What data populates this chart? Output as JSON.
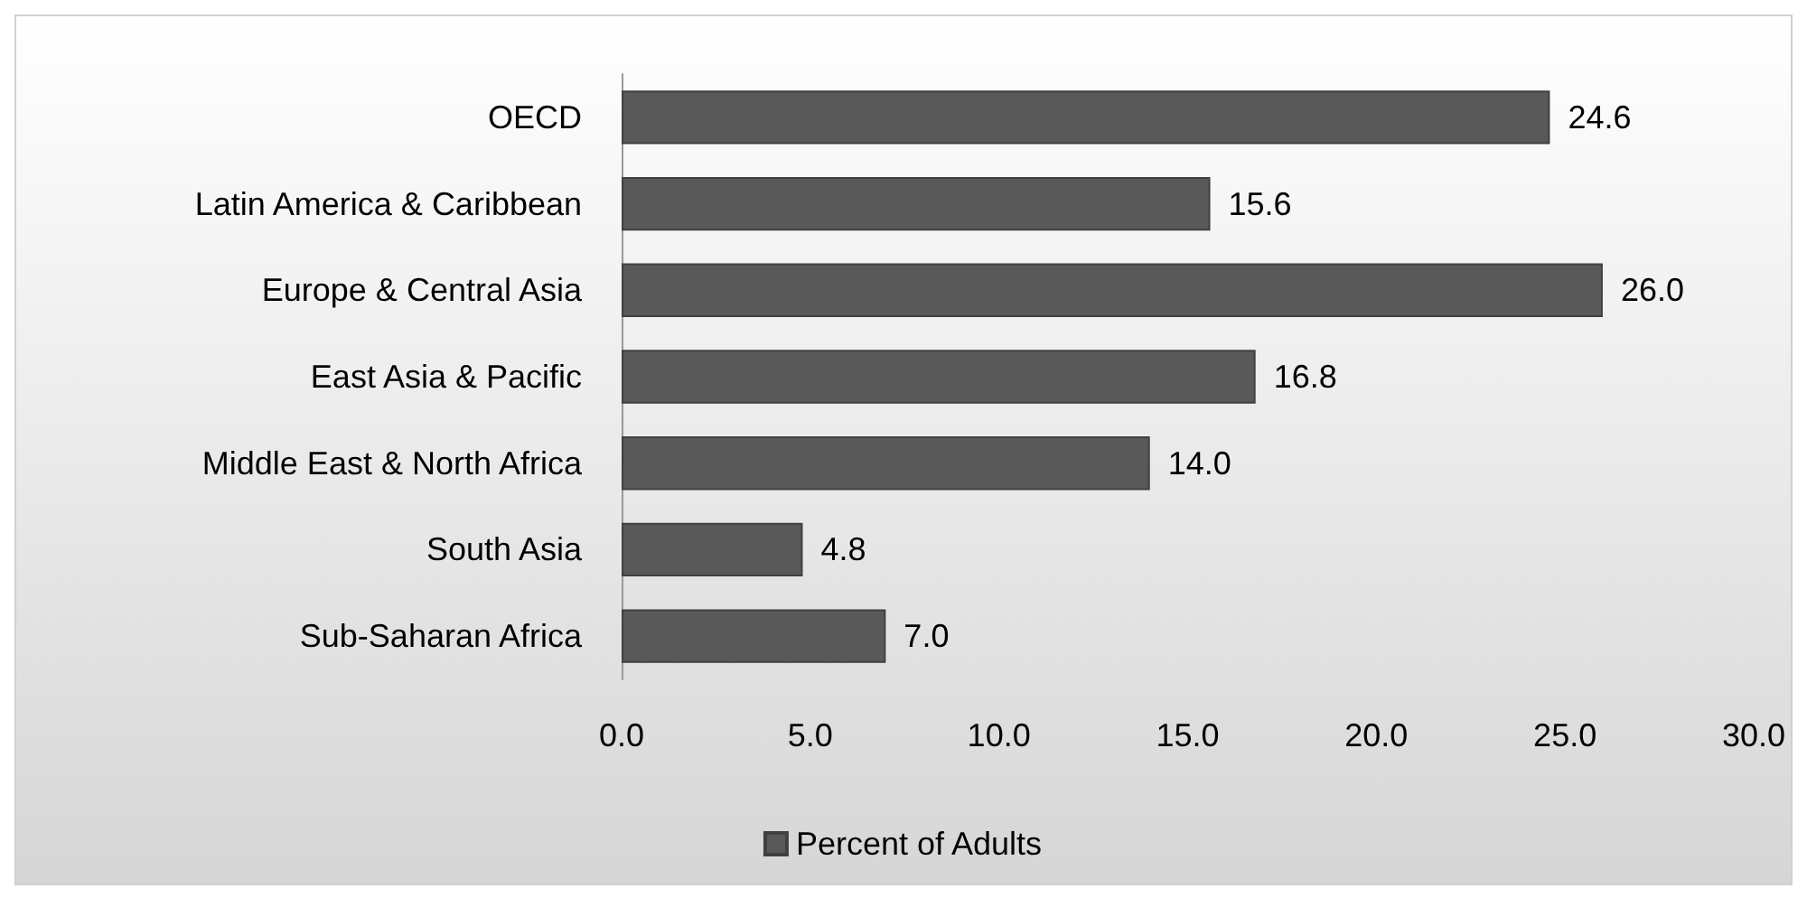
{
  "chart_data": {
    "type": "bar",
    "orientation": "horizontal",
    "categories": [
      "OECD",
      "Latin America & Caribbean",
      "Europe & Central Asia",
      "East Asia & Pacific",
      "Middle East & North Africa",
      "South Asia",
      "Sub-Saharan Africa"
    ],
    "series": [
      {
        "name": "Percent of Adults",
        "color": "#595959",
        "values": [
          24.6,
          15.6,
          26.0,
          16.8,
          14.0,
          4.8,
          7.0
        ],
        "value_labels": [
          "24.6",
          "15.6",
          "26.0",
          "16.8",
          "14.0",
          "4.8",
          "7.0"
        ]
      }
    ],
    "xlim": [
      0,
      30
    ],
    "xticks": [
      {
        "value": 0,
        "label": "0.0"
      },
      {
        "value": 5,
        "label": "5.0"
      },
      {
        "value": 10,
        "label": "10.0"
      },
      {
        "value": 15,
        "label": "15.0"
      },
      {
        "value": 20,
        "label": "20.0"
      },
      {
        "value": 25,
        "label": "25.0"
      },
      {
        "value": 30,
        "label": "30.0"
      }
    ],
    "grid": false,
    "legend": "bottom"
  }
}
